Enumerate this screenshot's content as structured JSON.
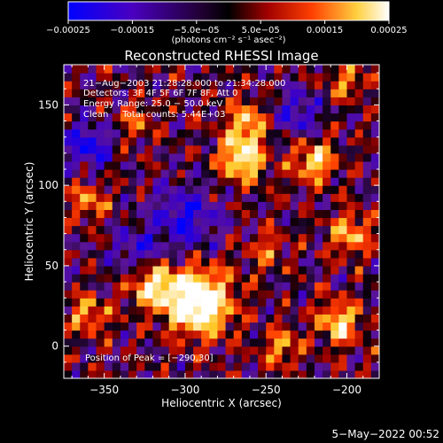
{
  "chart_data": {
    "type": "heatmap",
    "title": "Reconstructed RHESSI Image",
    "xlabel": "Heliocentric X (arcsec)",
    "ylabel": "Heliocentric Y (arcsec)",
    "xlim": [
      -375,
      -180
    ],
    "ylim": [
      -20,
      175
    ],
    "xticks": [
      -350,
      -300,
      -250,
      -200
    ],
    "xtick_labels": [
      "−350",
      "−300",
      "−250",
      "−200"
    ],
    "yticks": [
      0,
      50,
      100,
      150
    ],
    "ytick_labels": [
      "0",
      "50",
      "100",
      "150"
    ],
    "colorbar": {
      "range": [
        -0.00025,
        0.00025
      ],
      "tick_labels": [
        "−0.00025",
        "−0.00015",
        "−5.0e−05",
        "5.0e−05",
        "0.00015",
        "0.00025"
      ],
      "unit_label": "(photons cm⁻² s⁻¹ asec⁻²)",
      "colors": [
        "#0000ff",
        "#5a00b4",
        "#000000",
        "#b00000",
        "#ff6000",
        "#ffff60",
        "#ffffff"
      ]
    },
    "annotations": [
      "21−Aug−2003 21:28:28.000 to 21:34:28.000",
      "Detectors: 3F 4F 5F 6F 7F 8F, Att 0",
      "Energy Range: 25.0 − 50.0 keV",
      "Clean     Total counts: 5.44E+03"
    ],
    "peak_label": "Position of Peak = [−290,30]",
    "peak_position": [
      -290,
      30
    ],
    "timestamp": "5−May−2022 00:52",
    "hotspots": [
      {
        "x": -292,
        "y": 28,
        "amp": 2.6,
        "sigma": 14
      },
      {
        "x": -320,
        "y": 38,
        "amp": 1.6,
        "sigma": 10
      },
      {
        "x": -265,
        "y": 118,
        "amp": 1.9,
        "sigma": 10
      },
      {
        "x": -262,
        "y": 140,
        "amp": 1.4,
        "sigma": 8
      },
      {
        "x": -220,
        "y": 115,
        "amp": 1.5,
        "sigma": 9
      },
      {
        "x": -198,
        "y": 70,
        "amp": 1.3,
        "sigma": 9
      },
      {
        "x": -205,
        "y": 15,
        "amp": 1.6,
        "sigma": 9
      },
      {
        "x": -240,
        "y": 0,
        "amp": 1.1,
        "sigma": 8
      },
      {
        "x": -360,
        "y": 90,
        "amp": 1.0,
        "sigma": 8
      },
      {
        "x": -360,
        "y": 20,
        "amp": 1.2,
        "sigma": 8
      },
      {
        "x": -250,
        "y": 60,
        "amp": 0.9,
        "sigma": 8
      },
      {
        "x": -330,
        "y": 140,
        "amp": 0.9,
        "sigma": 7
      },
      {
        "x": -200,
        "y": 165,
        "amp": 1.0,
        "sigma": 8
      }
    ],
    "coldspots": [
      {
        "x": -360,
        "y": 125,
        "amp": 1.4,
        "sigma": 9
      },
      {
        "x": -300,
        "y": 80,
        "amp": 1.2,
        "sigma": 14
      },
      {
        "x": -230,
        "y": 145,
        "amp": 1.0,
        "sigma": 10
      },
      {
        "x": -330,
        "y": 60,
        "amp": 0.9,
        "sigma": 10
      }
    ]
  }
}
